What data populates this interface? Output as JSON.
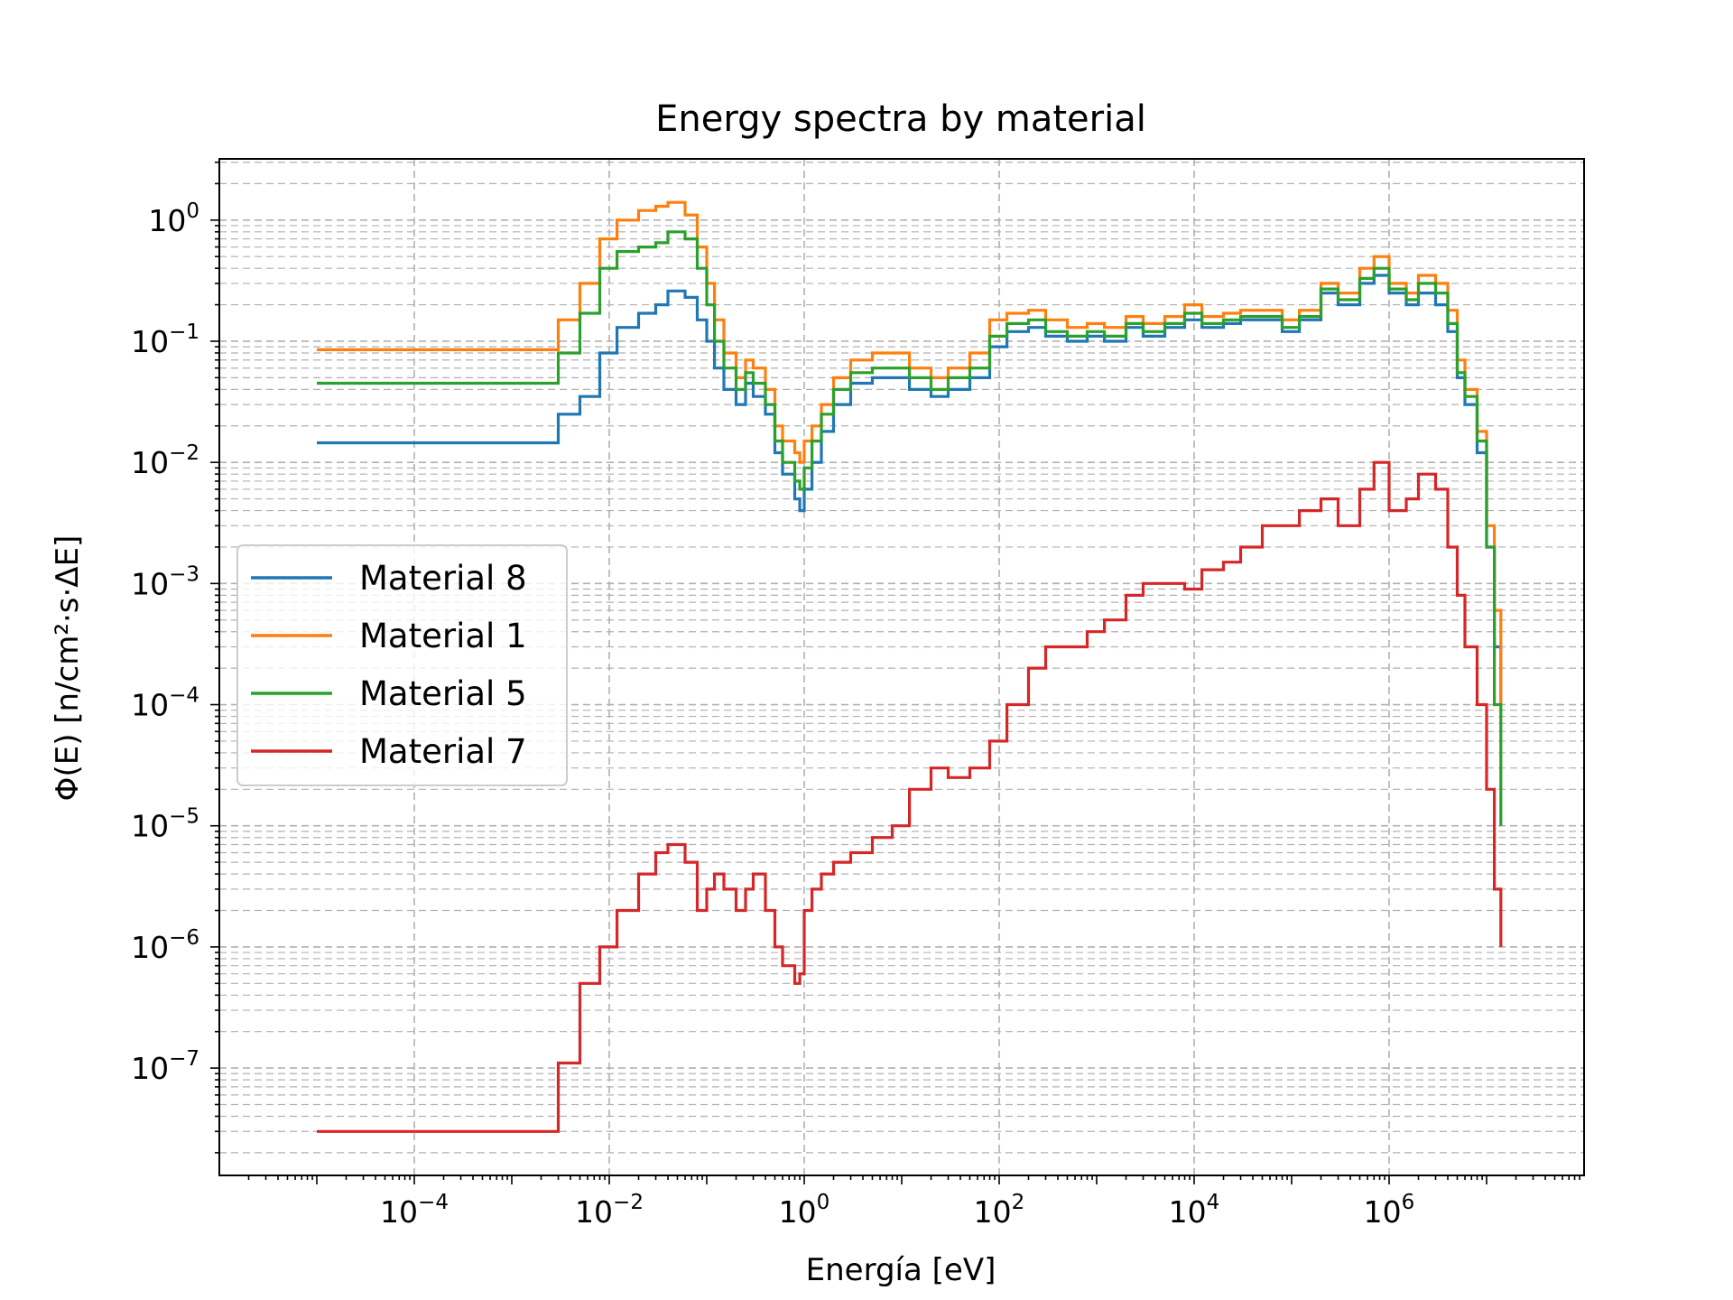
{
  "chart_data": {
    "type": "line",
    "title": "Energy spectra by material",
    "xlabel": "Energía [eV]",
    "ylabel": "Φ(E) [n/cm²·s·ΔE]",
    "x_scale": "log",
    "y_scale": "log",
    "xlim": [
      1e-06,
      100000000.0
    ],
    "ylim": [
      1.3e-08,
      3.2
    ],
    "x_ticks": [
      {
        "value": 0.0001,
        "base": "10",
        "exp": "−4"
      },
      {
        "value": 0.01,
        "base": "10",
        "exp": "−2"
      },
      {
        "value": 1,
        "base": "10",
        "exp": "0"
      },
      {
        "value": 100.0,
        "base": "10",
        "exp": "2"
      },
      {
        "value": 10000.0,
        "base": "10",
        "exp": "4"
      },
      {
        "value": 1000000.0,
        "base": "10",
        "exp": "6"
      }
    ],
    "y_ticks": [
      {
        "value": 1,
        "base": "10",
        "exp": "0"
      },
      {
        "value": 0.1,
        "base": "10",
        "exp": "−1"
      },
      {
        "value": 0.01,
        "base": "10",
        "exp": "−2"
      },
      {
        "value": 0.001,
        "base": "10",
        "exp": "−3"
      },
      {
        "value": 0.0001,
        "base": "10",
        "exp": "−4"
      },
      {
        "value": 1e-05,
        "base": "10",
        "exp": "−5"
      },
      {
        "value": 1e-06,
        "base": "10",
        "exp": "−6"
      },
      {
        "value": 1e-07,
        "base": "10",
        "exp": "−7"
      }
    ],
    "grid": true,
    "legend_position": "center-left",
    "step": "post",
    "series": [
      {
        "name": "Material 8",
        "color": "#1f77b4",
        "x": [
          1e-05,
          0.003,
          0.005,
          0.008,
          0.012,
          0.02,
          0.03,
          0.04,
          0.06,
          0.08,
          0.1,
          0.12,
          0.15,
          0.2,
          0.25,
          0.3,
          0.4,
          0.5,
          0.6,
          0.8,
          0.9,
          1.0,
          1.2,
          1.5,
          2,
          3,
          5,
          8,
          12,
          20,
          30,
          50,
          80,
          120,
          200,
          300,
          500,
          800,
          1200,
          2000,
          3000,
          5000,
          8000,
          12000,
          20000,
          30000,
          50000,
          80000,
          120000,
          200000,
          300000,
          500000,
          700000,
          1000000,
          1500000,
          2000000,
          3000000,
          4000000,
          5000000,
          6000000,
          8000000,
          10000000,
          12000000,
          14000000
        ],
        "y": [
          0.0145,
          0.025,
          0.035,
          0.08,
          0.13,
          0.17,
          0.2,
          0.26,
          0.23,
          0.15,
          0.1,
          0.06,
          0.04,
          0.03,
          0.045,
          0.035,
          0.025,
          0.012,
          0.008,
          0.005,
          0.004,
          0.006,
          0.01,
          0.018,
          0.03,
          0.045,
          0.05,
          0.05,
          0.04,
          0.035,
          0.04,
          0.05,
          0.09,
          0.12,
          0.13,
          0.11,
          0.1,
          0.11,
          0.1,
          0.13,
          0.11,
          0.13,
          0.15,
          0.13,
          0.14,
          0.15,
          0.15,
          0.12,
          0.15,
          0.25,
          0.2,
          0.3,
          0.35,
          0.25,
          0.2,
          0.25,
          0.2,
          0.12,
          0.05,
          0.03,
          0.012,
          0.002,
          0.0003,
          0.0001
        ]
      },
      {
        "name": "Material 1",
        "color": "#ff7f0e",
        "x": [
          1e-05,
          0.003,
          0.005,
          0.008,
          0.012,
          0.02,
          0.03,
          0.04,
          0.06,
          0.08,
          0.1,
          0.12,
          0.15,
          0.2,
          0.25,
          0.3,
          0.4,
          0.5,
          0.6,
          0.8,
          0.9,
          1.0,
          1.2,
          1.5,
          2,
          3,
          5,
          8,
          12,
          20,
          30,
          50,
          80,
          120,
          200,
          300,
          500,
          800,
          1200,
          2000,
          3000,
          5000,
          8000,
          12000,
          20000,
          30000,
          50000,
          80000,
          120000,
          200000,
          300000,
          500000,
          700000,
          1000000,
          1500000,
          2000000,
          3000000,
          4000000,
          5000000,
          6000000,
          8000000,
          10000000,
          12000000,
          14000000
        ],
        "y": [
          0.085,
          0.15,
          0.3,
          0.7,
          1.0,
          1.2,
          1.3,
          1.4,
          1.1,
          0.6,
          0.3,
          0.15,
          0.08,
          0.05,
          0.07,
          0.06,
          0.04,
          0.02,
          0.015,
          0.012,
          0.01,
          0.015,
          0.02,
          0.03,
          0.05,
          0.07,
          0.08,
          0.08,
          0.06,
          0.05,
          0.06,
          0.08,
          0.15,
          0.17,
          0.18,
          0.15,
          0.13,
          0.14,
          0.13,
          0.16,
          0.14,
          0.16,
          0.2,
          0.16,
          0.17,
          0.18,
          0.18,
          0.15,
          0.18,
          0.3,
          0.25,
          0.4,
          0.5,
          0.3,
          0.25,
          0.35,
          0.3,
          0.18,
          0.07,
          0.04,
          0.018,
          0.003,
          0.0006,
          0.0001
        ]
      },
      {
        "name": "Material 5",
        "color": "#2ca02c",
        "x": [
          1e-05,
          0.003,
          0.005,
          0.008,
          0.012,
          0.02,
          0.03,
          0.04,
          0.06,
          0.08,
          0.1,
          0.12,
          0.15,
          0.2,
          0.25,
          0.3,
          0.4,
          0.5,
          0.6,
          0.8,
          0.9,
          1.0,
          1.2,
          1.5,
          2,
          3,
          5,
          8,
          12,
          20,
          30,
          50,
          80,
          120,
          200,
          300,
          500,
          800,
          1200,
          2000,
          3000,
          5000,
          8000,
          12000,
          20000,
          30000,
          50000,
          80000,
          120000,
          200000,
          300000,
          500000,
          700000,
          1000000,
          1500000,
          2000000,
          3000000,
          4000000,
          5000000,
          6000000,
          8000000,
          10000000,
          12000000,
          14000000
        ],
        "y": [
          0.045,
          0.08,
          0.17,
          0.4,
          0.55,
          0.6,
          0.65,
          0.8,
          0.7,
          0.4,
          0.2,
          0.1,
          0.06,
          0.04,
          0.055,
          0.045,
          0.03,
          0.015,
          0.01,
          0.007,
          0.006,
          0.009,
          0.015,
          0.025,
          0.04,
          0.055,
          0.06,
          0.06,
          0.05,
          0.04,
          0.05,
          0.06,
          0.11,
          0.14,
          0.15,
          0.12,
          0.11,
          0.12,
          0.11,
          0.14,
          0.12,
          0.14,
          0.17,
          0.14,
          0.15,
          0.16,
          0.16,
          0.13,
          0.16,
          0.27,
          0.22,
          0.33,
          0.4,
          0.27,
          0.22,
          0.3,
          0.25,
          0.14,
          0.055,
          0.035,
          0.015,
          0.002,
          0.0001,
          1e-05
        ]
      },
      {
        "name": "Material 7",
        "color": "#d62728",
        "x": [
          1e-05,
          0.003,
          0.005,
          0.008,
          0.012,
          0.02,
          0.03,
          0.04,
          0.06,
          0.08,
          0.1,
          0.12,
          0.15,
          0.2,
          0.25,
          0.3,
          0.4,
          0.5,
          0.6,
          0.8,
          0.9,
          1.0,
          1.2,
          1.5,
          2,
          3,
          5,
          8,
          12,
          20,
          30,
          50,
          80,
          120,
          200,
          300,
          500,
          800,
          1200,
          2000,
          3000,
          5000,
          8000,
          12000,
          20000,
          30000,
          50000,
          80000,
          120000,
          200000,
          300000,
          500000,
          700000,
          1000000,
          1500000,
          2000000,
          3000000,
          4000000,
          5000000,
          6000000,
          8000000,
          10000000,
          12000000,
          14000000
        ],
        "y": [
          3e-08,
          1.1e-07,
          5e-07,
          1e-06,
          2e-06,
          4e-06,
          6e-06,
          7e-06,
          5e-06,
          2e-06,
          3e-06,
          4e-06,
          3e-06,
          2e-06,
          3e-06,
          4e-06,
          2e-06,
          1e-06,
          7e-07,
          5e-07,
          6e-07,
          2e-06,
          3e-06,
          4e-06,
          5e-06,
          6e-06,
          8e-06,
          1e-05,
          2e-05,
          3e-05,
          2.5e-05,
          3e-05,
          5e-05,
          0.0001,
          0.0002,
          0.0003,
          0.0003,
          0.0004,
          0.0005,
          0.0008,
          0.001,
          0.001,
          0.0009,
          0.0013,
          0.0015,
          0.002,
          0.003,
          0.003,
          0.004,
          0.005,
          0.003,
          0.006,
          0.01,
          0.004,
          0.005,
          0.008,
          0.006,
          0.002,
          0.0008,
          0.0003,
          0.0001,
          2e-05,
          3e-06,
          1e-06
        ]
      }
    ]
  }
}
